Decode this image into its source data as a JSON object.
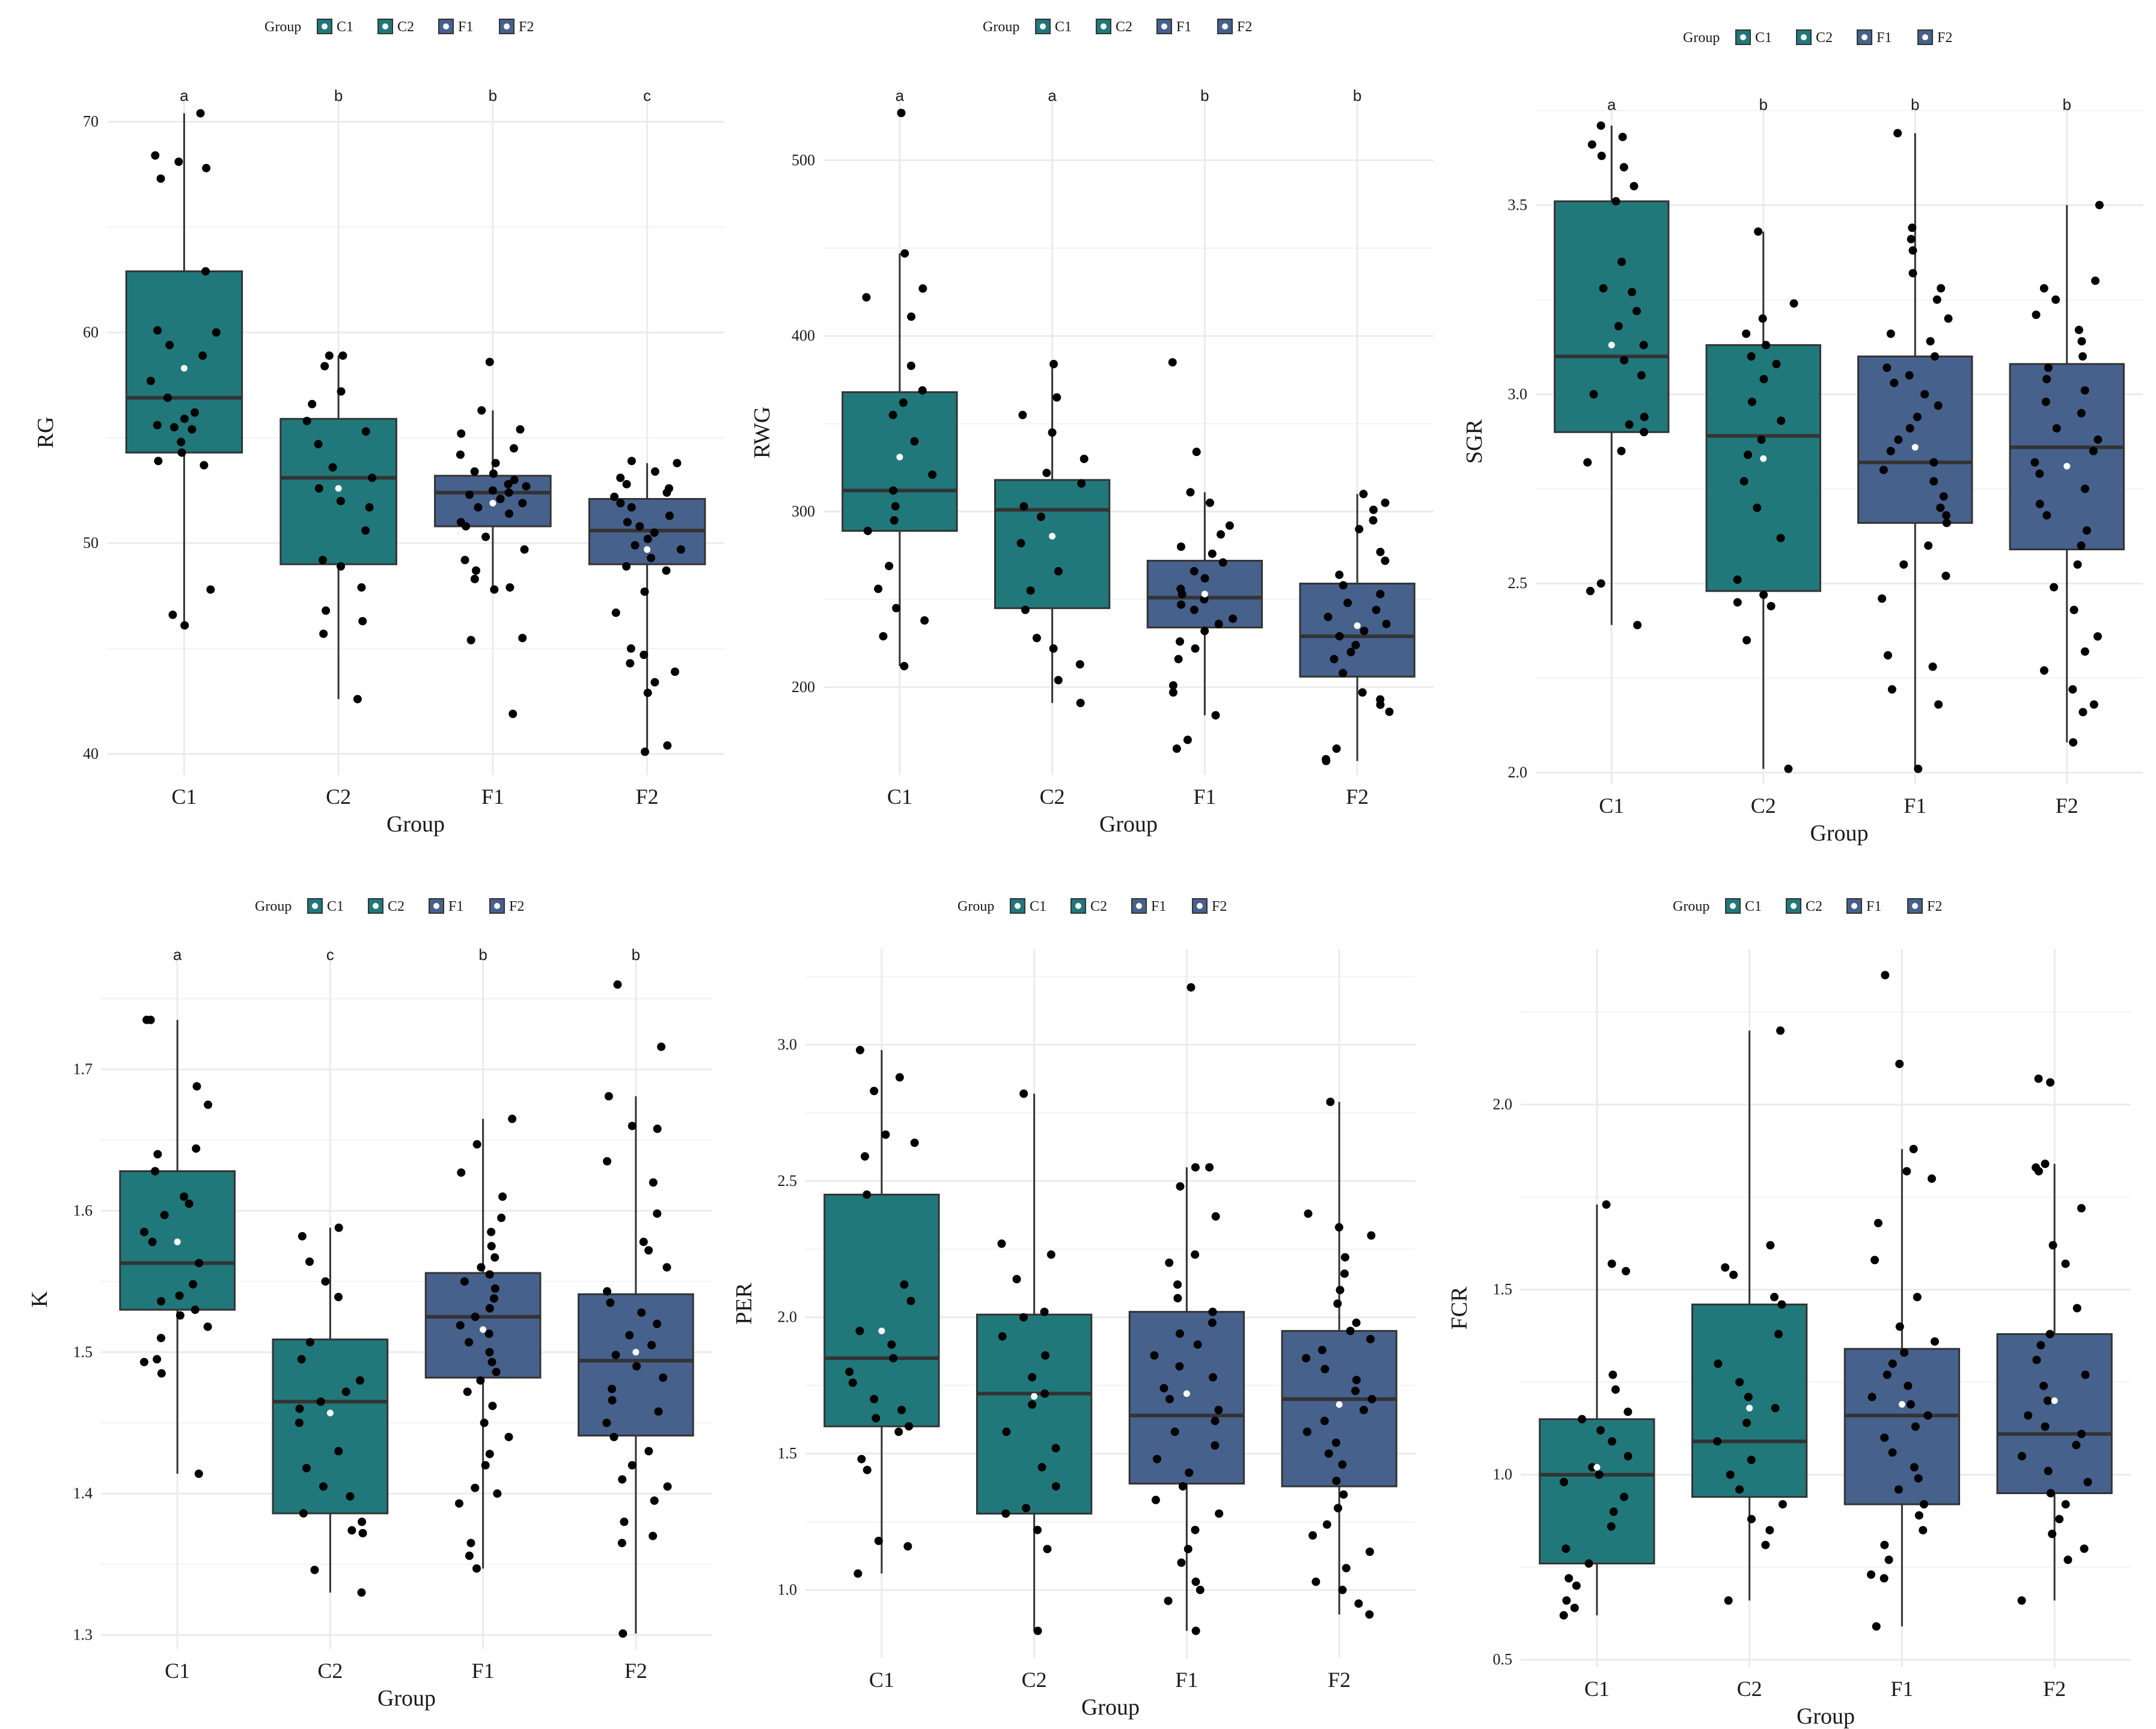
{
  "figure": {
    "x_axis_label": "Group",
    "legend_title": "Group"
  },
  "colors": {
    "C1": "#21787b",
    "C2": "#21787b",
    "F1": "#46618c",
    "F2": "#46618c",
    "point": "#000000",
    "mean": "#ffffff",
    "grid": "#ebebeb"
  },
  "chart_data": [
    {
      "type": "box",
      "ylabel": "RG",
      "xlabel": "Group",
      "legend": {
        "title": "Group",
        "items": [
          "C1",
          "C2",
          "F1",
          "F2"
        ],
        "position": "top"
      },
      "ylim": [
        39,
        71.5
      ],
      "yticks": [
        40,
        50,
        60,
        70
      ],
      "categories": [
        "C1",
        "C2",
        "F1",
        "F2"
      ],
      "letters": [
        "a",
        "b",
        "b",
        "c"
      ],
      "boxes": [
        {
          "q1": 54.3,
          "median": 56.9,
          "q3": 62.9,
          "lower": 46.1,
          "upper": 70.4,
          "mean": 58.3
        },
        {
          "q1": 49.0,
          "median": 53.1,
          "q3": 55.9,
          "lower": 42.6,
          "upper": 58.9,
          "mean": 52.6
        },
        {
          "q1": 50.8,
          "median": 52.4,
          "q3": 53.2,
          "lower": 47.9,
          "upper": 56.3,
          "mean": 51.9
        },
        {
          "q1": 49.0,
          "median": 50.6,
          "q3": 52.1,
          "lower": 40.1,
          "upper": 53.8,
          "mean": 49.7
        }
      ],
      "points": [
        [
          70.4,
          68.4,
          68.1,
          67.8,
          67.3,
          62.9,
          60.1,
          60.0,
          59.4,
          58.9,
          57.7,
          56.9,
          56.2,
          55.9,
          55.6,
          55.5,
          55.4,
          54.8,
          54.3,
          53.9,
          53.7,
          47.8,
          46.6,
          46.1
        ],
        [
          58.9,
          58.9,
          58.4,
          57.2,
          56.6,
          55.8,
          55.3,
          54.7,
          53.6,
          53.1,
          52.6,
          52.0,
          51.7,
          50.6,
          49.2,
          48.9,
          47.9,
          46.8,
          46.3,
          45.7,
          42.6
        ],
        [
          58.6,
          56.3,
          55.4,
          55.2,
          54.5,
          54.2,
          53.8,
          53.4,
          53.3,
          53.0,
          52.8,
          52.7,
          52.5,
          52.4,
          52.3,
          52.1,
          51.9,
          51.7,
          51.4,
          51.0,
          50.8,
          50.3,
          49.7,
          49.2,
          48.7,
          48.3,
          47.9,
          47.8,
          45.5,
          45.4,
          41.9
        ],
        [
          53.9,
          53.8,
          53.4,
          53.1,
          52.8,
          52.6,
          52.4,
          52.2,
          51.9,
          51.7,
          51.3,
          51.0,
          50.8,
          50.5,
          50.2,
          49.9,
          49.7,
          49.3,
          48.9,
          48.7,
          47.7,
          46.7,
          45.0,
          44.7,
          44.3,
          43.9,
          43.4,
          42.9,
          40.4,
          40.1
        ]
      ]
    },
    {
      "type": "box",
      "ylabel": "RWG",
      "xlabel": "Group",
      "legend": {
        "title": "Group",
        "items": [
          "C1",
          "C2",
          "F1",
          "F2"
        ],
        "position": "top"
      },
      "ylim": [
        150,
        540
      ],
      "yticks": [
        200,
        300,
        400,
        500
      ],
      "categories": [
        "C1",
        "C2",
        "F1",
        "F2"
      ],
      "letters": [
        "a",
        "a",
        "b",
        "b"
      ],
      "boxes": [
        {
          "q1": 289,
          "median": 312,
          "q3": 368,
          "lower": 212,
          "upper": 447,
          "mean": 331
        },
        {
          "q1": 245,
          "median": 301,
          "q3": 318,
          "lower": 191,
          "upper": 384,
          "mean": 286
        },
        {
          "q1": 234,
          "median": 251,
          "q3": 272,
          "lower": 184,
          "upper": 311,
          "mean": 253
        },
        {
          "q1": 206,
          "median": 229,
          "q3": 259,
          "lower": 158,
          "upper": 310,
          "mean": 235
        }
      ],
      "points": [
        [
          527,
          447,
          427,
          422,
          411,
          383,
          369,
          362,
          355,
          340,
          321,
          312,
          303,
          295,
          289,
          269,
          256,
          245,
          238,
          229,
          212
        ],
        [
          384,
          365,
          355,
          345,
          330,
          322,
          316,
          303,
          297,
          282,
          266,
          255,
          244,
          228,
          222,
          213,
          204,
          191
        ],
        [
          385,
          334,
          311,
          305,
          292,
          287,
          280,
          276,
          271,
          266,
          262,
          256,
          253,
          250,
          247,
          244,
          239,
          236,
          232,
          226,
          222,
          216,
          201,
          197,
          184,
          170,
          165
        ],
        [
          310,
          305,
          301,
          295,
          290,
          277,
          272,
          264,
          258,
          253,
          248,
          244,
          240,
          236,
          232,
          229,
          224,
          220,
          216,
          208,
          197,
          193,
          190,
          186,
          165,
          159,
          158
        ]
      ]
    },
    {
      "type": "box",
      "ylabel": "SGR",
      "xlabel": "Group",
      "legend": {
        "title": "Group",
        "items": [
          "C1",
          "C2",
          "F1",
          "F2"
        ],
        "position": "top"
      },
      "ylim": [
        1.97,
        3.78
      ],
      "yticks": [
        2.0,
        2.5,
        3.0,
        3.5
      ],
      "yticklabels": [
        "2.0",
        "2.5",
        "3.0",
        "3.5"
      ],
      "categories": [
        "C1",
        "C2",
        "F1",
        "F2"
      ],
      "letters": [
        "a",
        "b",
        "b",
        "b"
      ],
      "boxes": [
        {
          "q1": 2.9,
          "median": 3.1,
          "q3": 3.51,
          "lower": 2.39,
          "upper": 3.71,
          "mean": 3.13
        },
        {
          "q1": 2.48,
          "median": 2.89,
          "q3": 3.13,
          "lower": 2.01,
          "upper": 3.43,
          "mean": 2.83
        },
        {
          "q1": 2.66,
          "median": 2.82,
          "q3": 3.1,
          "lower": 2.01,
          "upper": 3.69,
          "mean": 2.86
        },
        {
          "q1": 2.59,
          "median": 2.86,
          "q3": 3.08,
          "lower": 2.08,
          "upper": 3.5,
          "mean": 2.81
        }
      ],
      "points": [
        [
          3.71,
          3.68,
          3.66,
          3.63,
          3.6,
          3.55,
          3.51,
          3.35,
          3.28,
          3.27,
          3.22,
          3.18,
          3.13,
          3.09,
          3.05,
          3.0,
          2.94,
          2.92,
          2.9,
          2.85,
          2.82,
          2.5,
          2.48,
          2.39
        ],
        [
          3.43,
          3.24,
          3.2,
          3.16,
          3.13,
          3.1,
          3.08,
          3.04,
          2.98,
          2.93,
          2.88,
          2.84,
          2.77,
          2.7,
          2.62,
          2.51,
          2.47,
          2.45,
          2.44,
          2.35,
          2.01
        ],
        [
          3.69,
          3.44,
          3.41,
          3.38,
          3.32,
          3.28,
          3.25,
          3.2,
          3.16,
          3.14,
          3.1,
          3.07,
          3.05,
          3.03,
          3.0,
          2.97,
          2.94,
          2.91,
          2.88,
          2.85,
          2.82,
          2.8,
          2.77,
          2.73,
          2.7,
          2.68,
          2.66,
          2.6,
          2.55,
          2.52,
          2.46,
          2.31,
          2.28,
          2.22,
          2.18,
          2.01
        ],
        [
          3.5,
          3.3,
          3.28,
          3.25,
          3.21,
          3.17,
          3.14,
          3.1,
          3.07,
          3.04,
          3.01,
          2.98,
          2.95,
          2.91,
          2.88,
          2.85,
          2.82,
          2.79,
          2.75,
          2.71,
          2.68,
          2.64,
          2.6,
          2.55,
          2.49,
          2.43,
          2.36,
          2.32,
          2.27,
          2.22,
          2.18,
          2.16,
          2.08
        ]
      ]
    },
    {
      "type": "box",
      "ylabel": "K",
      "xlabel": "Group",
      "legend": {
        "title": "Group",
        "items": [
          "C1",
          "C2",
          "F1",
          "F2"
        ],
        "position": "top"
      },
      "ylim": [
        1.29,
        1.785
      ],
      "yticks": [
        1.3,
        1.4,
        1.5,
        1.6,
        1.7
      ],
      "yticklabels": [
        "1.3",
        "1.4",
        "1.5",
        "1.6",
        "1.7"
      ],
      "categories": [
        "C1",
        "C2",
        "F1",
        "F2"
      ],
      "letters": [
        "a",
        "c",
        "b",
        "b"
      ],
      "boxes": [
        {
          "q1": 1.53,
          "median": 1.563,
          "q3": 1.628,
          "lower": 1.414,
          "upper": 1.735,
          "mean": 1.578
        },
        {
          "q1": 1.386,
          "median": 1.465,
          "q3": 1.509,
          "lower": 1.33,
          "upper": 1.588,
          "mean": 1.457
        },
        {
          "q1": 1.482,
          "median": 1.525,
          "q3": 1.556,
          "lower": 1.347,
          "upper": 1.665,
          "mean": 1.516
        },
        {
          "q1": 1.441,
          "median": 1.494,
          "q3": 1.541,
          "lower": 1.301,
          "upper": 1.681,
          "mean": 1.5
        }
      ],
      "points": [
        [
          1.735,
          1.735,
          1.688,
          1.675,
          1.644,
          1.64,
          1.628,
          1.61,
          1.605,
          1.597,
          1.585,
          1.578,
          1.563,
          1.548,
          1.54,
          1.536,
          1.53,
          1.526,
          1.518,
          1.51,
          1.495,
          1.493,
          1.485,
          1.414
        ],
        [
          1.588,
          1.582,
          1.564,
          1.55,
          1.539,
          1.507,
          1.495,
          1.48,
          1.472,
          1.465,
          1.46,
          1.45,
          1.43,
          1.418,
          1.405,
          1.398,
          1.386,
          1.38,
          1.374,
          1.372,
          1.346,
          1.33
        ],
        [
          1.665,
          1.647,
          1.627,
          1.61,
          1.595,
          1.585,
          1.575,
          1.567,
          1.56,
          1.555,
          1.55,
          1.545,
          1.538,
          1.531,
          1.525,
          1.519,
          1.513,
          1.507,
          1.5,
          1.493,
          1.486,
          1.48,
          1.472,
          1.462,
          1.45,
          1.44,
          1.428,
          1.42,
          1.404,
          1.4,
          1.393,
          1.365,
          1.356,
          1.347
        ],
        [
          1.76,
          1.716,
          1.681,
          1.66,
          1.658,
          1.635,
          1.62,
          1.598,
          1.578,
          1.572,
          1.56,
          1.543,
          1.535,
          1.528,
          1.52,
          1.512,
          1.505,
          1.498,
          1.49,
          1.482,
          1.474,
          1.466,
          1.458,
          1.45,
          1.44,
          1.43,
          1.42,
          1.41,
          1.405,
          1.395,
          1.38,
          1.37,
          1.365,
          1.301
        ]
      ]
    },
    {
      "type": "box",
      "ylabel": "PER",
      "xlabel": "Group",
      "legend": {
        "title": "Group",
        "items": [
          "C1",
          "C2",
          "F1",
          "F2"
        ],
        "position": "top"
      },
      "ylim": [
        0.75,
        3.35
      ],
      "yticks": [
        1.0,
        1.5,
        2.0,
        2.5,
        3.0
      ],
      "yticklabels": [
        "1.0",
        "1.5",
        "2.0",
        "2.5",
        "3.0"
      ],
      "categories": [
        "C1",
        "C2",
        "F1",
        "F2"
      ],
      "letters": [],
      "boxes": [
        {
          "q1": 1.6,
          "median": 1.85,
          "q3": 2.45,
          "lower": 1.06,
          "upper": 2.98,
          "mean": 1.95
        },
        {
          "q1": 1.28,
          "median": 1.72,
          "q3": 2.01,
          "lower": 0.85,
          "upper": 2.82,
          "mean": 1.71
        },
        {
          "q1": 1.39,
          "median": 1.64,
          "q3": 2.02,
          "lower": 0.85,
          "upper": 2.55,
          "mean": 1.72
        },
        {
          "q1": 1.38,
          "median": 1.7,
          "q3": 1.95,
          "lower": 0.91,
          "upper": 2.79,
          "mean": 1.68
        }
      ],
      "points": [
        [
          2.98,
          2.88,
          2.83,
          2.67,
          2.64,
          2.59,
          2.45,
          2.12,
          2.06,
          1.95,
          1.9,
          1.85,
          1.8,
          1.76,
          1.7,
          1.66,
          1.63,
          1.6,
          1.58,
          1.48,
          1.44,
          1.18,
          1.16,
          1.06
        ],
        [
          2.82,
          2.27,
          2.23,
          2.14,
          2.02,
          2.0,
          1.93,
          1.86,
          1.78,
          1.72,
          1.68,
          1.58,
          1.52,
          1.45,
          1.38,
          1.3,
          1.28,
          1.22,
          1.15,
          0.85
        ],
        [
          3.21,
          2.55,
          2.55,
          2.48,
          2.37,
          2.23,
          2.2,
          2.12,
          2.07,
          2.02,
          1.98,
          1.94,
          1.9,
          1.86,
          1.82,
          1.78,
          1.74,
          1.7,
          1.66,
          1.62,
          1.58,
          1.53,
          1.48,
          1.43,
          1.38,
          1.33,
          1.28,
          1.22,
          1.15,
          1.1,
          1.03,
          1.0,
          0.96,
          0.85
        ],
        [
          2.79,
          2.38,
          2.33,
          2.3,
          2.22,
          2.16,
          2.1,
          2.05,
          1.98,
          1.95,
          1.92,
          1.88,
          1.85,
          1.81,
          1.77,
          1.73,
          1.7,
          1.66,
          1.62,
          1.58,
          1.54,
          1.5,
          1.46,
          1.4,
          1.35,
          1.3,
          1.24,
          1.2,
          1.14,
          1.08,
          1.03,
          1.0,
          0.95,
          0.91
        ]
      ]
    },
    {
      "type": "box",
      "ylabel": "FCR",
      "xlabel": "Group",
      "legend": {
        "title": "Group",
        "items": [
          "C1",
          "C2",
          "F1",
          "F2"
        ],
        "position": "top"
      },
      "ylim": [
        0.48,
        2.42
      ],
      "yticks": [
        0.5,
        1.0,
        1.5,
        2.0
      ],
      "yticklabels": [
        "0.5",
        "1.0",
        "1.5",
        "2.0"
      ],
      "categories": [
        "C1",
        "C2",
        "F1",
        "F2"
      ],
      "letters": [],
      "boxes": [
        {
          "q1": 0.76,
          "median": 1.0,
          "q3": 1.15,
          "lower": 0.62,
          "upper": 1.73,
          "mean": 1.02
        },
        {
          "q1": 0.94,
          "median": 1.09,
          "q3": 1.46,
          "lower": 0.66,
          "upper": 2.2,
          "mean": 1.18
        },
        {
          "q1": 0.92,
          "median": 1.16,
          "q3": 1.34,
          "lower": 0.59,
          "upper": 1.88,
          "mean": 1.19
        },
        {
          "q1": 0.95,
          "median": 1.11,
          "q3": 1.38,
          "lower": 0.66,
          "upper": 1.84,
          "mean": 1.2
        }
      ],
      "points": [
        [
          1.73,
          1.57,
          1.55,
          1.27,
          1.23,
          1.17,
          1.15,
          1.12,
          1.09,
          1.05,
          1.02,
          1.0,
          0.98,
          0.94,
          0.9,
          0.86,
          0.8,
          0.76,
          0.72,
          0.7,
          0.66,
          0.64,
          0.62
        ],
        [
          2.2,
          1.62,
          1.56,
          1.54,
          1.48,
          1.46,
          1.38,
          1.3,
          1.25,
          1.21,
          1.18,
          1.14,
          1.09,
          1.04,
          1.0,
          0.96,
          0.92,
          0.88,
          0.85,
          0.81,
          0.66
        ],
        [
          2.35,
          2.11,
          1.88,
          1.82,
          1.8,
          1.68,
          1.58,
          1.48,
          1.4,
          1.36,
          1.33,
          1.3,
          1.27,
          1.24,
          1.21,
          1.19,
          1.16,
          1.13,
          1.1,
          1.06,
          1.02,
          0.99,
          0.96,
          0.92,
          0.89,
          0.85,
          0.81,
          0.77,
          0.73,
          0.72,
          0.59
        ],
        [
          2.07,
          2.06,
          1.84,
          1.83,
          1.82,
          1.72,
          1.62,
          1.57,
          1.45,
          1.38,
          1.35,
          1.31,
          1.27,
          1.24,
          1.2,
          1.16,
          1.13,
          1.11,
          1.08,
          1.05,
          1.01,
          0.98,
          0.95,
          0.92,
          0.88,
          0.84,
          0.8,
          0.77,
          0.66
        ]
      ]
    }
  ]
}
